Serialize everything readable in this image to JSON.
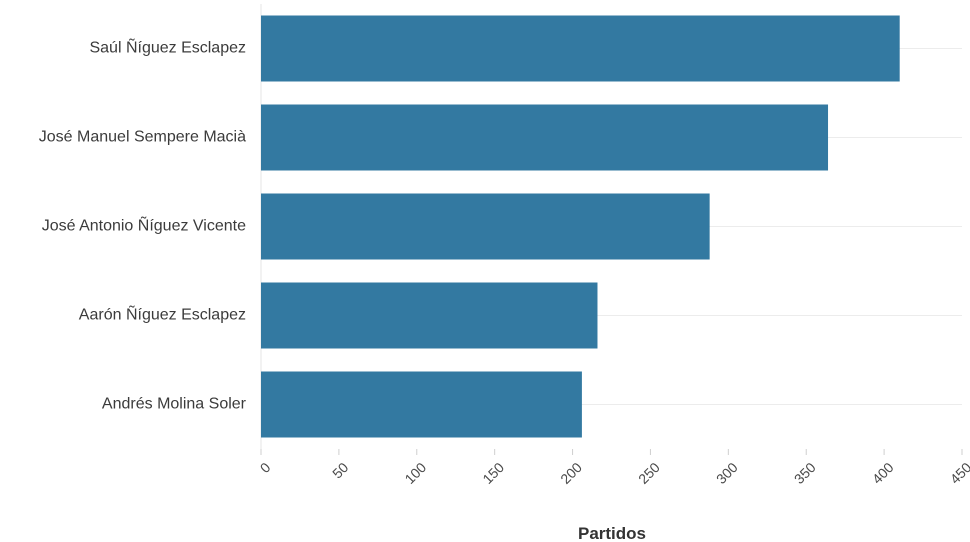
{
  "chart_data": {
    "type": "bar",
    "orientation": "horizontal",
    "categories": [
      "Saúl Ñíguez Esclapez",
      "José Manuel Sempere Macià",
      "José Antonio Ñíguez Vicente",
      "Aarón Ñíguez Esclapez",
      "Andrés Molina Soler"
    ],
    "values": [
      410,
      364,
      288,
      216,
      206
    ],
    "xlabel": "Partidos",
    "ylabel": "",
    "xlim": [
      0,
      450
    ],
    "xticks": [
      0,
      50,
      100,
      150,
      200,
      250,
      300,
      350,
      400,
      450
    ],
    "grid": "horizontal lines at category centers",
    "bar_color": "#3379a1"
  }
}
